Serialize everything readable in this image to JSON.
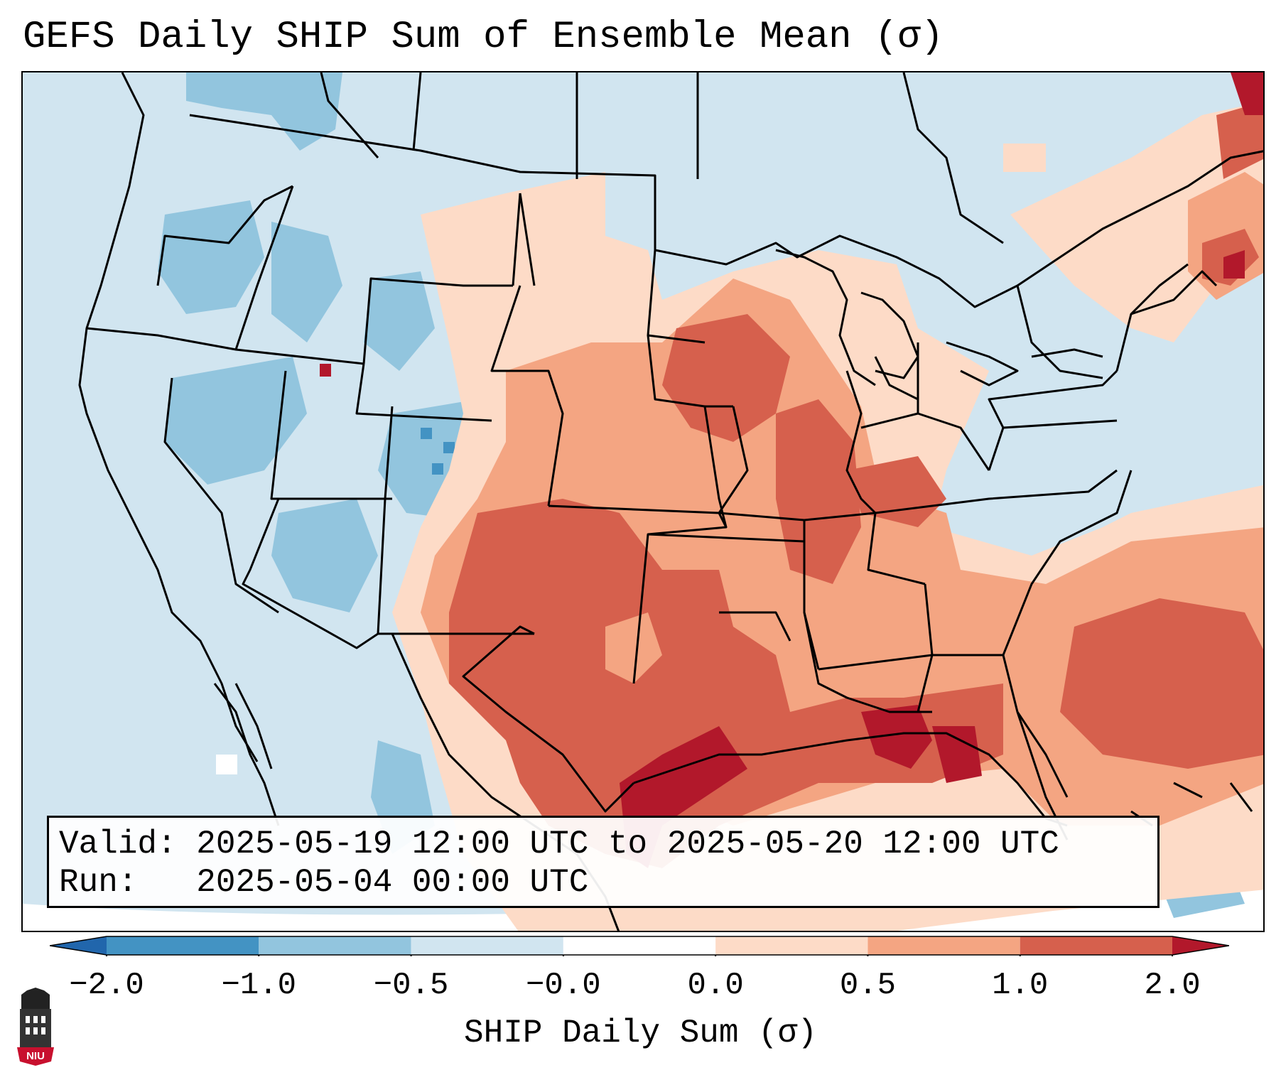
{
  "title": "GEFS Daily SHIP Sum of Ensemble Mean (σ)",
  "info": {
    "valid_label": "Valid:",
    "valid_value": "2025-05-19 12:00 UTC to 2025-05-20 12:00 UTC",
    "run_label": "Run:",
    "run_value": "2025-05-04 00:00 UTC"
  },
  "colorbar": {
    "label": "SHIP Daily Sum (σ)",
    "ticks": [
      "−2.0",
      "−1.0",
      "−0.5",
      "−0.0",
      "0.0",
      "0.5",
      "1.0",
      "2.0"
    ],
    "colors": [
      "#4393c3",
      "#92c5de",
      "#d1e5f0",
      "#ffffff",
      "#fddbc7",
      "#f4a582",
      "#d6604d",
      "#b2182b"
    ],
    "under_color": "#2166ac",
    "over_color": "#b2182b"
  },
  "legend_colors": {
    "strong_negative": "#92c5de",
    "weak_negative": "#d1e5f0",
    "weak_positive": "#fddbc7",
    "moderate_positive": "#f4a582",
    "strong_positive": "#d6604d",
    "extreme_positive": "#b2182b"
  },
  "logo": {
    "text": "NIU",
    "icon": "niu-logo-icon"
  }
}
